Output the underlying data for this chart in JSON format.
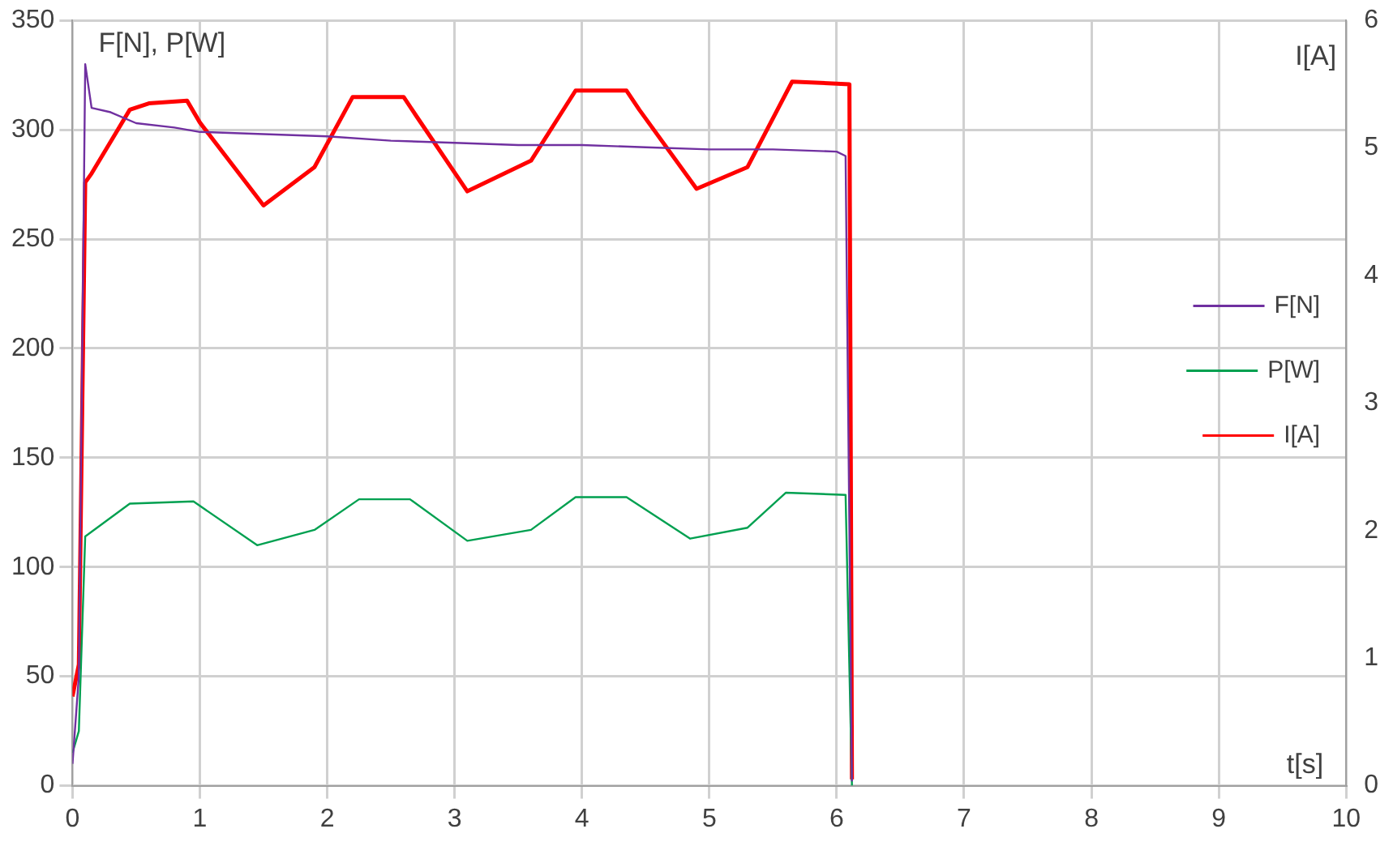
{
  "chart_data": {
    "type": "line",
    "xlabel": "t[s]",
    "ylabel": "F[N], P[W]",
    "y2label": "I[A]",
    "xlim": [
      0,
      10
    ],
    "xticks": [
      0,
      1,
      2,
      3,
      4,
      5,
      6,
      7,
      8,
      9,
      10
    ],
    "ylim": [
      0,
      350
    ],
    "yticks": [
      0,
      50,
      100,
      150,
      200,
      250,
      300,
      350
    ],
    "y2lim": [
      0,
      6
    ],
    "y2ticks": [
      0,
      1,
      2,
      3,
      4,
      5,
      6
    ],
    "grid": true,
    "legend": "right",
    "marker": "none",
    "line_style": "solid",
    "series": [
      {
        "name": "F[N]",
        "color": "#7030a0",
        "x": [
          0,
          0.05,
          0.1,
          0.15,
          0.3,
          0.5,
          0.8,
          1,
          1.5,
          2,
          2.5,
          3,
          3.5,
          4,
          4.5,
          5,
          5.5,
          6,
          6.07,
          6.12
        ],
        "values": [
          10,
          50,
          330,
          310,
          308,
          303,
          301,
          299,
          298,
          297,
          295,
          294,
          293,
          293,
          292,
          291,
          291,
          290,
          288,
          2
        ]
      },
      {
        "name": "P[W]",
        "color": "#00a050",
        "x": [
          0,
          0.05,
          0.1,
          0.45,
          0.95,
          1.45,
          1.9,
          2.25,
          2.65,
          3.1,
          3.6,
          3.95,
          4.35,
          4.85,
          5.3,
          5.6,
          6.07,
          6.12
        ],
        "values": [
          15,
          25,
          114,
          129,
          130,
          110,
          117,
          131,
          131,
          112,
          117,
          132,
          132,
          113,
          118,
          134,
          133,
          0
        ]
      },
      {
        "name": "I[A]",
        "color": "#ff0000",
        "axis": "y2",
        "x": [
          0,
          0.05,
          0.1,
          0.15,
          0.3,
          0.45,
          0.6,
          0.9,
          1,
          1.5,
          1.9,
          2.2,
          2.6,
          2.7,
          3.1,
          3.6,
          3.95,
          4.35,
          4.45,
          4.9,
          5.3,
          5.65,
          6.1,
          6.12
        ],
        "values": [
          0.7,
          0.95,
          4.73,
          4.8,
          5.05,
          5.3,
          5.35,
          5.37,
          5.2,
          4.55,
          4.85,
          5.4,
          5.4,
          5.25,
          4.66,
          4.9,
          5.45,
          5.45,
          5.3,
          4.68,
          4.85,
          5.52,
          5.5,
          0.05
        ]
      }
    ]
  }
}
